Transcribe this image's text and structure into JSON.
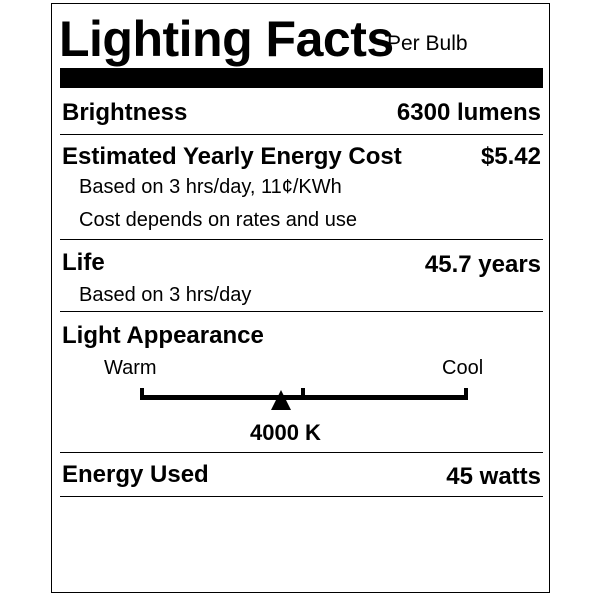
{
  "header": {
    "title": "Lighting Facts",
    "subtitle": "Per Bulb"
  },
  "brightness": {
    "label": "Brightness",
    "value": "6300 lumens"
  },
  "energy_cost": {
    "label": "Estimated Yearly Energy Cost",
    "value": "$5.42",
    "note1": "Based on 3 hrs/day, 11¢/KWh",
    "note2": "Cost depends on rates and use"
  },
  "life": {
    "label": "Life",
    "value": "45.7 years",
    "note": "Based on 3 hrs/day"
  },
  "appearance": {
    "label": "Light Appearance",
    "warm_label": "Warm",
    "cool_label": "Cool",
    "value": "4000 K",
    "marker_fraction": 0.43
  },
  "energy_used": {
    "label": "Energy Used",
    "value": "45 watts"
  }
}
